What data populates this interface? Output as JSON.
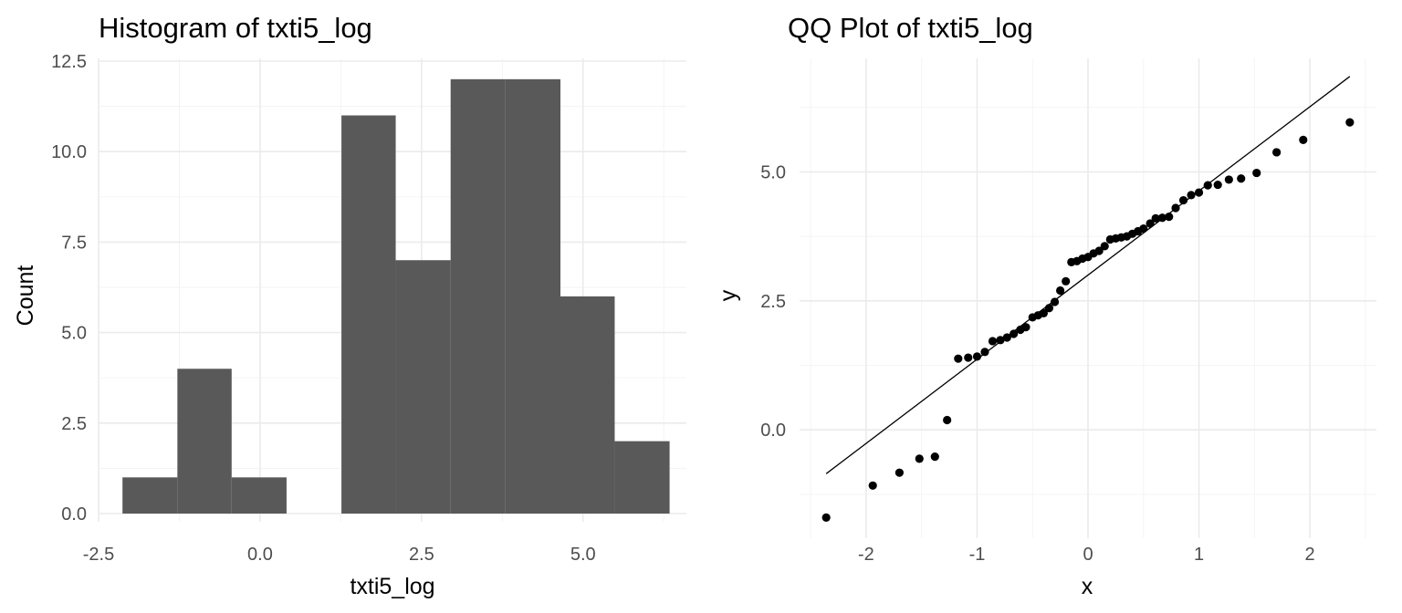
{
  "chart_data": [
    {
      "type": "bar",
      "title": "Histogram of txti5_log",
      "xlabel": "txti5_log",
      "ylabel": "Count",
      "xlim": [
        -2.5,
        6.6
      ],
      "ylim": [
        0,
        12.5
      ],
      "x_ticks": [
        -2.5,
        0.0,
        2.5,
        5.0
      ],
      "x_tick_labels": [
        "-2.5",
        "0.0",
        "2.5",
        "5.0"
      ],
      "y_ticks": [
        0,
        2.5,
        5.0,
        7.5,
        10.0,
        12.5
      ],
      "y_tick_labels": [
        "0.0",
        "2.5",
        "5.0",
        "7.5",
        "10.0",
        "12.5"
      ],
      "grid": true,
      "bins": [
        {
          "x0": -2.13,
          "x1": -1.28,
          "count": 1
        },
        {
          "x0": -1.28,
          "x1": -0.44,
          "count": 4
        },
        {
          "x0": -0.44,
          "x1": 0.41,
          "count": 1
        },
        {
          "x0": 0.41,
          "x1": 1.26,
          "count": 0
        },
        {
          "x0": 1.26,
          "x1": 2.1,
          "count": 11
        },
        {
          "x0": 2.1,
          "x1": 2.95,
          "count": 7
        },
        {
          "x0": 2.95,
          "x1": 3.8,
          "count": 12
        },
        {
          "x0": 3.8,
          "x1": 4.65,
          "count": 12
        },
        {
          "x0": 4.65,
          "x1": 5.49,
          "count": 6
        },
        {
          "x0": 5.49,
          "x1": 6.34,
          "count": 2
        }
      ]
    },
    {
      "type": "scatter",
      "title": "QQ Plot of txti5_log",
      "xlabel": "x",
      "ylabel": "y",
      "xlim": [
        -2.6,
        2.6
      ],
      "ylim": [
        -2.1,
        7.2
      ],
      "x_ticks": [
        -2,
        -1,
        0,
        1,
        2
      ],
      "x_tick_labels": [
        "-2",
        "-1",
        "0",
        "1",
        "2"
      ],
      "y_ticks": [
        0.0,
        2.5,
        5.0
      ],
      "y_tick_labels": [
        "0.0",
        "2.5",
        "5.0"
      ],
      "grid": true,
      "reference_line": {
        "x": [
          -2.36,
          2.36
        ],
        "y": [
          -0.85,
          6.85
        ]
      },
      "points": {
        "x": [
          -2.36,
          -1.94,
          -1.7,
          -1.52,
          -1.38,
          -1.27,
          -1.17,
          -1.08,
          -1.0,
          -0.93,
          -0.86,
          -0.79,
          -0.73,
          -0.67,
          -0.61,
          -0.56,
          -0.5,
          -0.45,
          -0.4,
          -0.35,
          -0.3,
          -0.25,
          -0.2,
          -0.15,
          -0.1,
          -0.05,
          0.0,
          0.05,
          0.1,
          0.15,
          0.2,
          0.25,
          0.3,
          0.35,
          0.4,
          0.45,
          0.5,
          0.56,
          0.61,
          0.67,
          0.73,
          0.79,
          0.86,
          0.93,
          1.0,
          1.08,
          1.17,
          1.27,
          1.38,
          1.52,
          1.7,
          1.94,
          2.36
        ],
        "y": [
          -1.7,
          -1.08,
          -0.83,
          -0.56,
          -0.52,
          0.19,
          1.38,
          1.4,
          1.42,
          1.51,
          1.72,
          1.74,
          1.79,
          1.86,
          1.94,
          1.99,
          2.18,
          2.22,
          2.26,
          2.36,
          2.48,
          2.7,
          2.88,
          3.25,
          3.27,
          3.32,
          3.35,
          3.42,
          3.47,
          3.56,
          3.69,
          3.71,
          3.73,
          3.75,
          3.8,
          3.85,
          3.9,
          4.0,
          4.1,
          4.11,
          4.13,
          4.3,
          4.45,
          4.55,
          4.6,
          4.74,
          4.75,
          4.85,
          4.87,
          4.98,
          5.38,
          5.62,
          5.96
        ]
      }
    }
  ]
}
